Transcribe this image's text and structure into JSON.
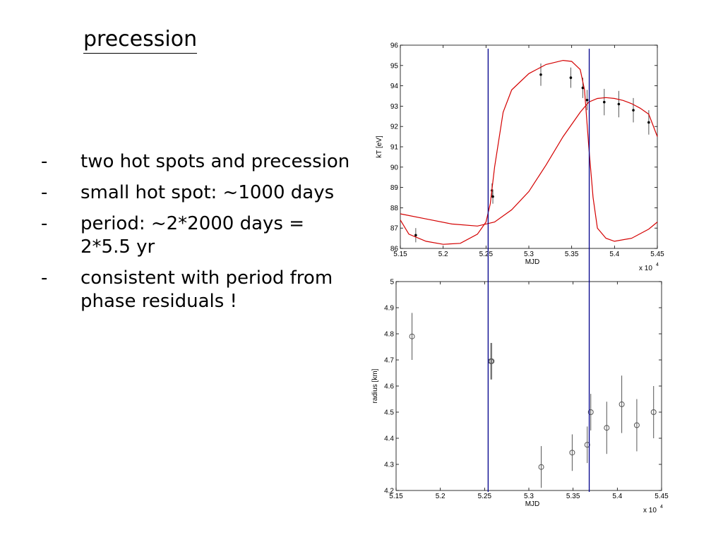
{
  "slide": {
    "title": "precession",
    "bullets": [
      {
        "marker": "-",
        "text": "two hot spots and precession"
      },
      {
        "marker": "-",
        "text": "small hot spot: ~1000 days"
      },
      {
        "marker": "-",
        "text": "period: ~2*2000 days = 2*5.5 yr"
      },
      {
        "marker": "-",
        "text": "consistent with period from phase residuals !"
      }
    ]
  },
  "colors": {
    "model_curve": "#d40000",
    "vertical_marker": "#00008b",
    "points": "#000000",
    "axes": "#000000"
  },
  "chart_data": [
    {
      "type": "scatter",
      "xlabel": "MJD",
      "ylabel": "kT [eV]",
      "x_multiplier_label": "x 10",
      "x_multiplier_exponent": "4",
      "xlim": [
        5.15,
        5.45
      ],
      "ylim": [
        86,
        96
      ],
      "xticks": [
        "5.15",
        "5.2",
        "5.25",
        "5.3",
        "5.35",
        "5.4",
        "5.45"
      ],
      "yticks": [
        "86",
        "87",
        "88",
        "89",
        "90",
        "91",
        "92",
        "93",
        "94",
        "95",
        "96"
      ],
      "series": [
        {
          "kind": "errorbar",
          "x": [
            5.168,
            5.257,
            5.258,
            5.314,
            5.349,
            5.363,
            5.368,
            5.388,
            5.405,
            5.422,
            5.44
          ],
          "y": [
            86.65,
            88.85,
            88.55,
            94.55,
            94.4,
            93.9,
            93.3,
            93.2,
            93.1,
            92.8,
            92.2
          ],
          "err": [
            0.35,
            0.35,
            0.35,
            0.55,
            0.5,
            0.5,
            0.5,
            0.65,
            0.65,
            0.6,
            0.6
          ]
        },
        {
          "kind": "model",
          "x": [
            5.15,
            5.16,
            5.18,
            5.2,
            5.22,
            5.24,
            5.25,
            5.255,
            5.26,
            5.27,
            5.28,
            5.3,
            5.32,
            5.34,
            5.35,
            5.36,
            5.365,
            5.37,
            5.375,
            5.38,
            5.39,
            5.4,
            5.42,
            5.44,
            5.45
          ],
          "y": [
            87.4,
            86.7,
            86.35,
            86.2,
            86.25,
            86.7,
            87.3,
            88.2,
            90.0,
            92.7,
            93.8,
            94.6,
            95.05,
            95.25,
            95.2,
            94.8,
            93.8,
            91.0,
            88.5,
            87.0,
            86.5,
            86.35,
            86.5,
            86.95,
            87.3
          ]
        },
        {
          "kind": "model",
          "x": [
            5.15,
            5.18,
            5.21,
            5.24,
            5.26,
            5.28,
            5.3,
            5.32,
            5.34,
            5.36,
            5.37,
            5.38,
            5.39,
            5.4,
            5.41,
            5.42,
            5.43,
            5.44,
            5.45
          ],
          "y": [
            87.7,
            87.45,
            87.2,
            87.1,
            87.3,
            87.9,
            88.8,
            90.1,
            91.5,
            92.7,
            93.2,
            93.38,
            93.42,
            93.38,
            93.28,
            93.12,
            92.9,
            92.6,
            91.5
          ]
        }
      ],
      "vlines": [
        5.2525,
        5.3705
      ]
    },
    {
      "type": "scatter",
      "xlabel": "MJD",
      "ylabel": "radius [km]",
      "x_multiplier_label": "x 10",
      "x_multiplier_exponent": "4",
      "xlim": [
        5.15,
        5.45
      ],
      "ylim": [
        4.2,
        5.0
      ],
      "xticks": [
        "5.15",
        "5.2",
        "5.25",
        "5.3",
        "5.35",
        "5.4",
        "5.45"
      ],
      "yticks": [
        "4.2",
        "4.3",
        "4.4",
        "4.5",
        "4.6",
        "4.7",
        "4.8",
        "4.9",
        "5"
      ],
      "series": [
        {
          "kind": "errorbar-open",
          "x": [
            5.168,
            5.257,
            5.258,
            5.314,
            5.349,
            5.366,
            5.37,
            5.388,
            5.405,
            5.422,
            5.441
          ],
          "y": [
            4.79,
            4.695,
            4.695,
            4.29,
            4.345,
            4.375,
            4.5,
            4.44,
            4.53,
            4.45,
            4.5
          ],
          "err": [
            0.09,
            0.07,
            0.07,
            0.08,
            0.07,
            0.07,
            0.07,
            0.1,
            0.11,
            0.1,
            0.1
          ]
        }
      ],
      "vlines": [
        5.2525,
        5.3705
      ]
    }
  ]
}
